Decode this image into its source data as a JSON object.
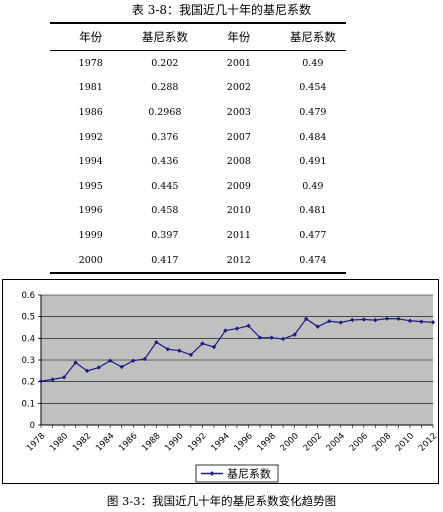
{
  "table": {
    "title": "表 3-8：我国近几十年的基尼系数",
    "headers": [
      "年份",
      "基尼系数",
      "年份",
      "基尼系数"
    ],
    "rows": [
      [
        "1978",
        "0.202",
        "2001",
        "0.49"
      ],
      [
        "1981",
        "0.288",
        "2002",
        "0.454"
      ],
      [
        "1986",
        "0.2968",
        "2003",
        "0.479"
      ],
      [
        "1992",
        "0.376",
        "2007",
        "0.484"
      ],
      [
        "1994",
        "0.436",
        "2008",
        "0.491"
      ],
      [
        "1995",
        "0.445",
        "2009",
        "0.49"
      ],
      [
        "1996",
        "0.458",
        "2010",
        "0.481"
      ],
      [
        "1999",
        "0.397",
        "2011",
        "0.477"
      ],
      [
        "2000",
        "0.417",
        "2012",
        "0.474"
      ]
    ]
  },
  "chart_data": {
    "type": "line",
    "title": "",
    "xlabel": "",
    "ylabel": "",
    "x": [
      "1978",
      "1979",
      "1980",
      "1981",
      "1982",
      "1983",
      "1984",
      "1985",
      "1986",
      "1987",
      "1988",
      "1989",
      "1990",
      "1991",
      "1992",
      "1993",
      "1994",
      "1995",
      "1996",
      "1997",
      "1998",
      "1999",
      "2000",
      "2001",
      "2002",
      "2003",
      "2004",
      "2005",
      "2006",
      "2007",
      "2008",
      "2009",
      "2010",
      "2011",
      "2012"
    ],
    "x_tick_labels": [
      "1978",
      "1980",
      "1982",
      "1984",
      "1986",
      "1988",
      "1990",
      "1992",
      "1994",
      "1996",
      "1998",
      "2000",
      "2002",
      "2004",
      "2006",
      "2008",
      "2010",
      "2012"
    ],
    "y_ticks": [
      "0",
      "0.1",
      "0.2",
      "0.3",
      "0.4",
      "0.5",
      "0.6"
    ],
    "ylim": [
      0,
      0.6
    ],
    "series": [
      {
        "name": "基尼系数",
        "color": "#1c1c80",
        "values": [
          0.202,
          0.21,
          0.22,
          0.288,
          0.25,
          0.265,
          0.297,
          0.268,
          0.297,
          0.305,
          0.382,
          0.35,
          0.343,
          0.324,
          0.376,
          0.36,
          0.436,
          0.445,
          0.458,
          0.403,
          0.403,
          0.397,
          0.417,
          0.49,
          0.454,
          0.479,
          0.473,
          0.485,
          0.487,
          0.484,
          0.491,
          0.49,
          0.481,
          0.477,
          0.474
        ]
      }
    ],
    "plot_background": "#c0c0c0",
    "grid": "horizontal",
    "legend_position": "bottom"
  },
  "caption": "图 3-3：我国近几十年的基尼系数变化趋势图"
}
